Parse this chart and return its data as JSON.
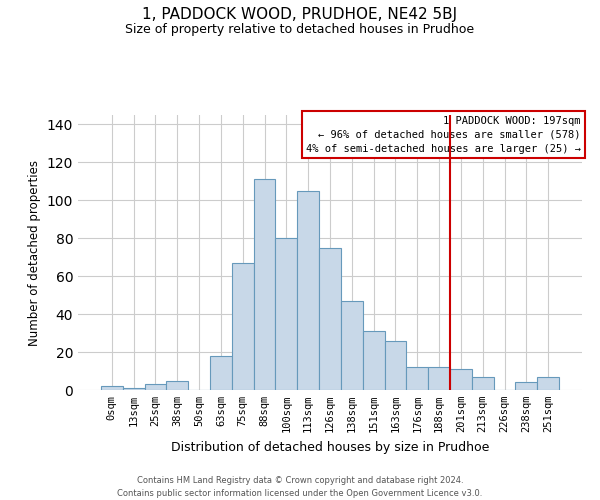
{
  "title": "1, PADDOCK WOOD, PRUDHOE, NE42 5BJ",
  "subtitle": "Size of property relative to detached houses in Prudhoe",
  "xlabel": "Distribution of detached houses by size in Prudhoe",
  "ylabel": "Number of detached properties",
  "bar_labels": [
    "0sqm",
    "13sqm",
    "25sqm",
    "38sqm",
    "50sqm",
    "63sqm",
    "75sqm",
    "88sqm",
    "100sqm",
    "113sqm",
    "126sqm",
    "138sqm",
    "151sqm",
    "163sqm",
    "176sqm",
    "188sqm",
    "201sqm",
    "213sqm",
    "226sqm",
    "238sqm",
    "251sqm"
  ],
  "bar_values": [
    2,
    1,
    3,
    5,
    0,
    18,
    67,
    111,
    80,
    105,
    75,
    47,
    31,
    26,
    12,
    12,
    11,
    7,
    0,
    4,
    7
  ],
  "bar_color": "#c8d8e8",
  "bar_edge_color": "#6699bb",
  "ylim": [
    0,
    145
  ],
  "yticks": [
    0,
    20,
    40,
    60,
    80,
    100,
    120,
    140
  ],
  "vline_x_index": 16,
  "vline_color": "#cc0000",
  "annotation_title": "1 PADDOCK WOOD: 197sqm",
  "annotation_line1": "← 96% of detached houses are smaller (578)",
  "annotation_line2": "4% of semi-detached houses are larger (25) →",
  "footer_line1": "Contains HM Land Registry data © Crown copyright and database right 2024.",
  "footer_line2": "Contains public sector information licensed under the Open Government Licence v3.0.",
  "bg_color": "#ffffff",
  "grid_color": "#cccccc"
}
